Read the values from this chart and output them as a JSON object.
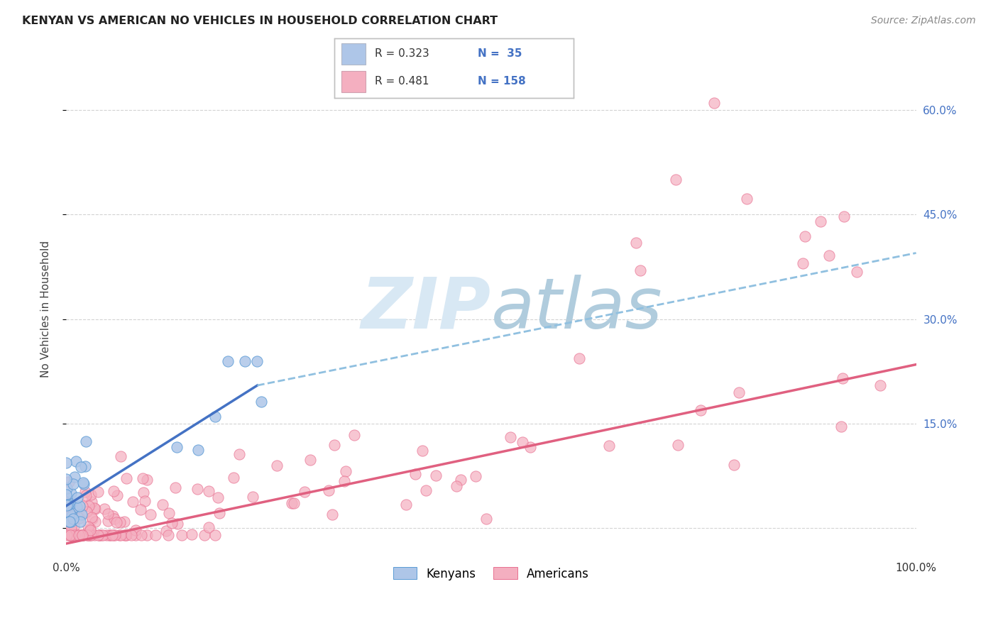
{
  "title": "KENYAN VS AMERICAN NO VEHICLES IN HOUSEHOLD CORRELATION CHART",
  "source": "Source: ZipAtlas.com",
  "ylabel": "No Vehicles in Household",
  "kenyan_color": "#aec6e8",
  "kenyan_edge_color": "#5b9bd5",
  "american_color": "#f4afc0",
  "american_edge_color": "#e87090",
  "kenyan_line_color": "#4472c4",
  "american_line_color": "#e06080",
  "dashed_line_color": "#90c0e0",
  "background_color": "#ffffff",
  "grid_color": "#c8c8c8",
  "watermark_color": "#d8e8f4",
  "right_tick_color": "#4472c4",
  "xmin": 0.0,
  "xmax": 1.0,
  "ymin": -0.04,
  "ymax": 0.67,
  "kenyan_trendline_xstart": 0.0,
  "kenyan_trendline_xend": 0.225,
  "kenyan_trendline_ystart": 0.032,
  "kenyan_trendline_yend": 0.205,
  "dashed_xstart": 0.225,
  "dashed_xend": 1.0,
  "dashed_ystart": 0.205,
  "dashed_yend": 0.395,
  "american_trendline_xstart": 0.0,
  "american_trendline_xend": 1.0,
  "american_trendline_ystart": -0.022,
  "american_trendline_yend": 0.235,
  "legend_r1": "R = 0.323",
  "legend_n1": "N =  35",
  "legend_r2": "R = 0.481",
  "legend_n2": "N = 158"
}
